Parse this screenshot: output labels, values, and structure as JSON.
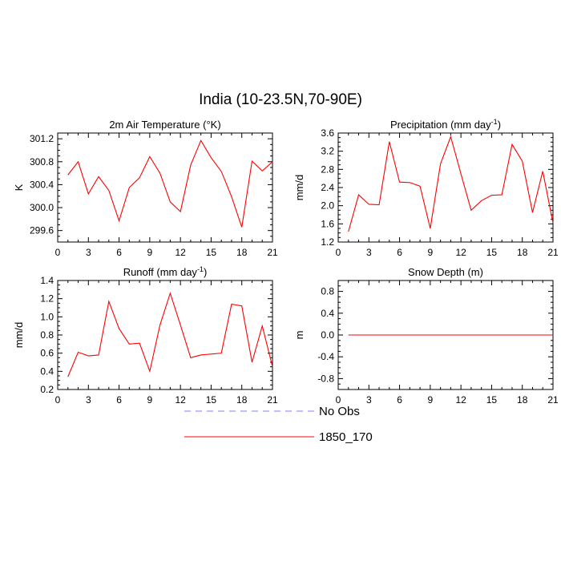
{
  "title": "India (10-23.5N,70-90E)",
  "legend": [
    {
      "label": "No Obs",
      "color": "#8080ff",
      "dashed": true
    },
    {
      "label": "1850_170",
      "color": "#ff0000",
      "dashed": false
    }
  ],
  "chart_data": [
    {
      "type": "line",
      "title": "2m Air Temperature (°K)",
      "ylabel": "K",
      "xlim": [
        0,
        21
      ],
      "xticks": [
        0,
        3,
        6,
        9,
        12,
        15,
        18,
        21
      ],
      "ylim": [
        299.4,
        301.3
      ],
      "yticks": [
        299.6,
        300.0,
        300.4,
        300.8,
        301.2
      ],
      "ytick_labels": [
        "299.6",
        "300.0",
        "300.4",
        "300.8",
        "301.2"
      ],
      "series": [
        {
          "name": "1850_170",
          "color": "#ff0000",
          "x": [
            1,
            2,
            3,
            4,
            5,
            6,
            7,
            8,
            9,
            10,
            11,
            12,
            13,
            14,
            15,
            16,
            17,
            18,
            19,
            20,
            21
          ],
          "y": [
            300.57,
            300.8,
            300.24,
            300.54,
            300.3,
            299.77,
            300.35,
            300.52,
            300.89,
            300.6,
            300.1,
            299.93,
            300.74,
            301.17,
            300.87,
            300.63,
            300.19,
            299.66,
            300.81,
            300.64,
            300.8
          ]
        }
      ]
    },
    {
      "type": "line",
      "title": "Precipitation (mm day-1)",
      "ylabel": "mm/d",
      "xlim": [
        0,
        21
      ],
      "xticks": [
        0,
        3,
        6,
        9,
        12,
        15,
        18,
        21
      ],
      "ylim": [
        1.2,
        3.6
      ],
      "yticks": [
        1.2,
        1.6,
        2.0,
        2.4,
        2.8,
        3.2,
        3.6
      ],
      "ytick_labels": [
        "1.2",
        "1.6",
        "2.0",
        "2.4",
        "2.8",
        "3.2",
        "3.6"
      ],
      "series": [
        {
          "name": "1850_170",
          "color": "#ff0000",
          "x": [
            1,
            2,
            3,
            4,
            5,
            6,
            7,
            8,
            9,
            10,
            11,
            12,
            13,
            14,
            15,
            16,
            17,
            18,
            19,
            20,
            21
          ],
          "y": [
            1.43,
            2.24,
            2.03,
            2.02,
            3.41,
            2.52,
            2.51,
            2.43,
            1.5,
            2.92,
            3.52,
            2.7,
            1.9,
            2.11,
            2.23,
            2.24,
            3.35,
            2.98,
            1.85,
            2.76,
            1.62
          ]
        }
      ]
    },
    {
      "type": "line",
      "title": "Runoff (mm day-1)",
      "ylabel": "mm/d",
      "xlim": [
        0,
        21
      ],
      "xticks": [
        0,
        3,
        6,
        9,
        12,
        15,
        18,
        21
      ],
      "ylim": [
        0.2,
        1.4
      ],
      "yticks": [
        0.2,
        0.4,
        0.6,
        0.8,
        1.0,
        1.2,
        1.4
      ],
      "ytick_labels": [
        "0.2",
        "0.4",
        "0.6",
        "0.8",
        "1.0",
        "1.2",
        "1.4"
      ],
      "series": [
        {
          "name": "1850_170",
          "color": "#ff0000",
          "x": [
            1,
            2,
            3,
            4,
            5,
            6,
            7,
            8,
            9,
            10,
            11,
            12,
            13,
            14,
            15,
            16,
            17,
            18,
            19,
            20,
            21
          ],
          "y": [
            0.34,
            0.61,
            0.57,
            0.58,
            1.17,
            0.87,
            0.7,
            0.71,
            0.4,
            0.91,
            1.26,
            0.91,
            0.55,
            0.58,
            0.59,
            0.6,
            1.14,
            1.12,
            0.5,
            0.9,
            0.45
          ]
        }
      ]
    },
    {
      "type": "line",
      "title": "Snow Depth (m)",
      "ylabel": "m",
      "xlim": [
        0,
        21
      ],
      "xticks": [
        0,
        3,
        6,
        9,
        12,
        15,
        18,
        21
      ],
      "ylim": [
        -1.0,
        1.0
      ],
      "yticks": [
        -0.8,
        -0.4,
        0.0,
        0.4,
        0.8
      ],
      "ytick_labels": [
        "-0.8",
        "-0.4",
        "0.0",
        "0.4",
        "0.8"
      ],
      "series": [
        {
          "name": "1850_170",
          "color": "#ff0000",
          "x": [
            1,
            21
          ],
          "y": [
            0.0,
            0.0
          ]
        }
      ]
    }
  ]
}
